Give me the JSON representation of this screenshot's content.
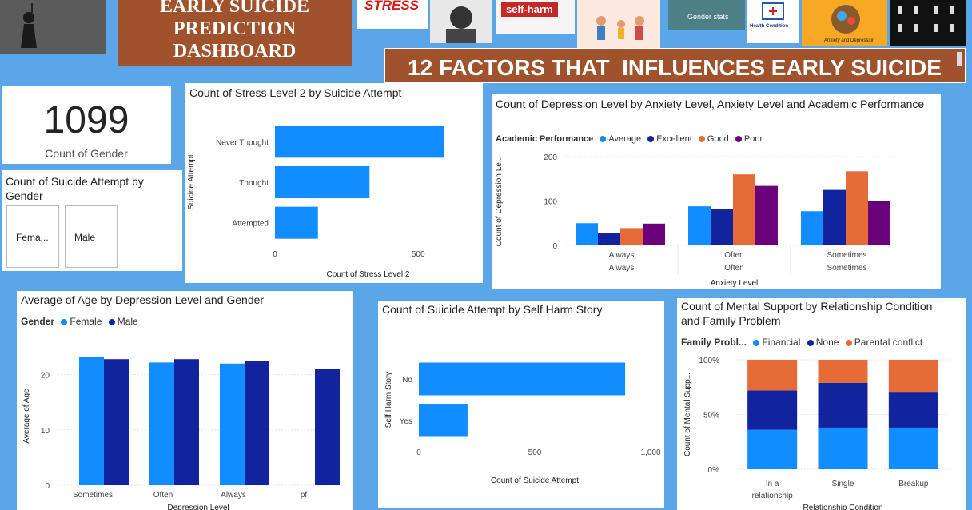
{
  "header": {
    "title": "EARLY SUICIDE PREDICTION DASHBOARD",
    "banner": "12 FACTORS THAT  INFLUENCES EARLY SUICIDE",
    "thumbs": [
      "STRESS",
      "self-harm",
      "Gender stats",
      "Health Condition",
      "Anxiety and Depression"
    ]
  },
  "kpi": {
    "value": "1099",
    "label": "Count of Gender"
  },
  "gender_card": {
    "title": "Count of Suicide Attempt by Gender",
    "slicers": [
      "Fema...",
      "Male"
    ]
  },
  "colors": {
    "blue": "#118DFF",
    "navy": "#12239E",
    "orange": "#E66C37",
    "purple": "#6B007B"
  },
  "charts": {
    "stress": {
      "title": "Count of Stress Level 2 by Suicide Attempt",
      "xlabel": "Count of Stress Level 2",
      "ylabel": "Suicide Attempt",
      "ticks": [
        "0",
        "500"
      ]
    },
    "depression": {
      "title": "Count of Depression Level by Anxiety Level, Anxiety Level and Academic Performance",
      "legend_title": "Academic Performance",
      "xlabel": "Anxiety Level",
      "ylabel": "Count of Depression Le...",
      "ticks": [
        "0",
        "100",
        "200"
      ]
    },
    "age": {
      "title": "Average of Age by Depression Level and Gender",
      "legend_title": "Gender",
      "xlabel": "Depression Level",
      "ylabel": "Average of Age",
      "ticks": [
        "0",
        "10",
        "20"
      ]
    },
    "selfharm": {
      "title": "Count of Suicide Attempt by Self Harm Story",
      "xlabel": "Count of Suicide Attempt",
      "ylabel": "Self Harm Story",
      "ticks": [
        "0",
        "500",
        "1,000"
      ]
    },
    "support": {
      "title": "Count of Mental Support by Relationship Condition and Family Problem",
      "legend_title": "Family Probl...",
      "xlabel": "Relationship Condition",
      "ylabel": "Count of Mental Supp...",
      "ticks": [
        "0%",
        "50%",
        "100%"
      ]
    }
  },
  "chart_data": [
    {
      "type": "bar",
      "orientation": "horizontal",
      "categories": [
        "Never Thought",
        "Thought",
        "Attempted"
      ],
      "values": [
        590,
        330,
        150
      ],
      "xlim": [
        0,
        650
      ]
    },
    {
      "type": "bar",
      "categories": [
        "Always",
        "Often",
        "Sometimes"
      ],
      "sublabels": [
        "Always",
        "Often",
        "Sometimes"
      ],
      "series": [
        {
          "name": "Average",
          "values": [
            50,
            88,
            77
          ]
        },
        {
          "name": "Excellent",
          "values": [
            27,
            82,
            125
          ]
        },
        {
          "name": "Good",
          "values": [
            39,
            160,
            167
          ]
        },
        {
          "name": "Poor",
          "values": [
            49,
            134,
            100
          ]
        }
      ],
      "ylim": [
        0,
        200
      ]
    },
    {
      "type": "bar",
      "categories": [
        "Sometimes",
        "Often",
        "Always",
        "pf"
      ],
      "series": [
        {
          "name": "Female",
          "values": [
            23.2,
            22.2,
            22.0,
            null
          ]
        },
        {
          "name": "Male",
          "values": [
            22.8,
            22.8,
            22.5,
            21.1
          ]
        }
      ],
      "ylim": [
        0,
        25
      ]
    },
    {
      "type": "bar",
      "orientation": "horizontal",
      "categories": [
        "No",
        "Yes"
      ],
      "values": [
        890,
        210
      ],
      "xlim": [
        0,
        1000
      ]
    },
    {
      "type": "bar",
      "stacked": "100%",
      "categories": [
        "In a relationship",
        "Single",
        "Breakup"
      ],
      "series": [
        {
          "name": "Financial",
          "values": [
            36,
            38,
            38
          ]
        },
        {
          "name": "None",
          "values": [
            36,
            41,
            32
          ]
        },
        {
          "name": "Parental conflict",
          "values": [
            28,
            21,
            30
          ]
        }
      ]
    }
  ]
}
